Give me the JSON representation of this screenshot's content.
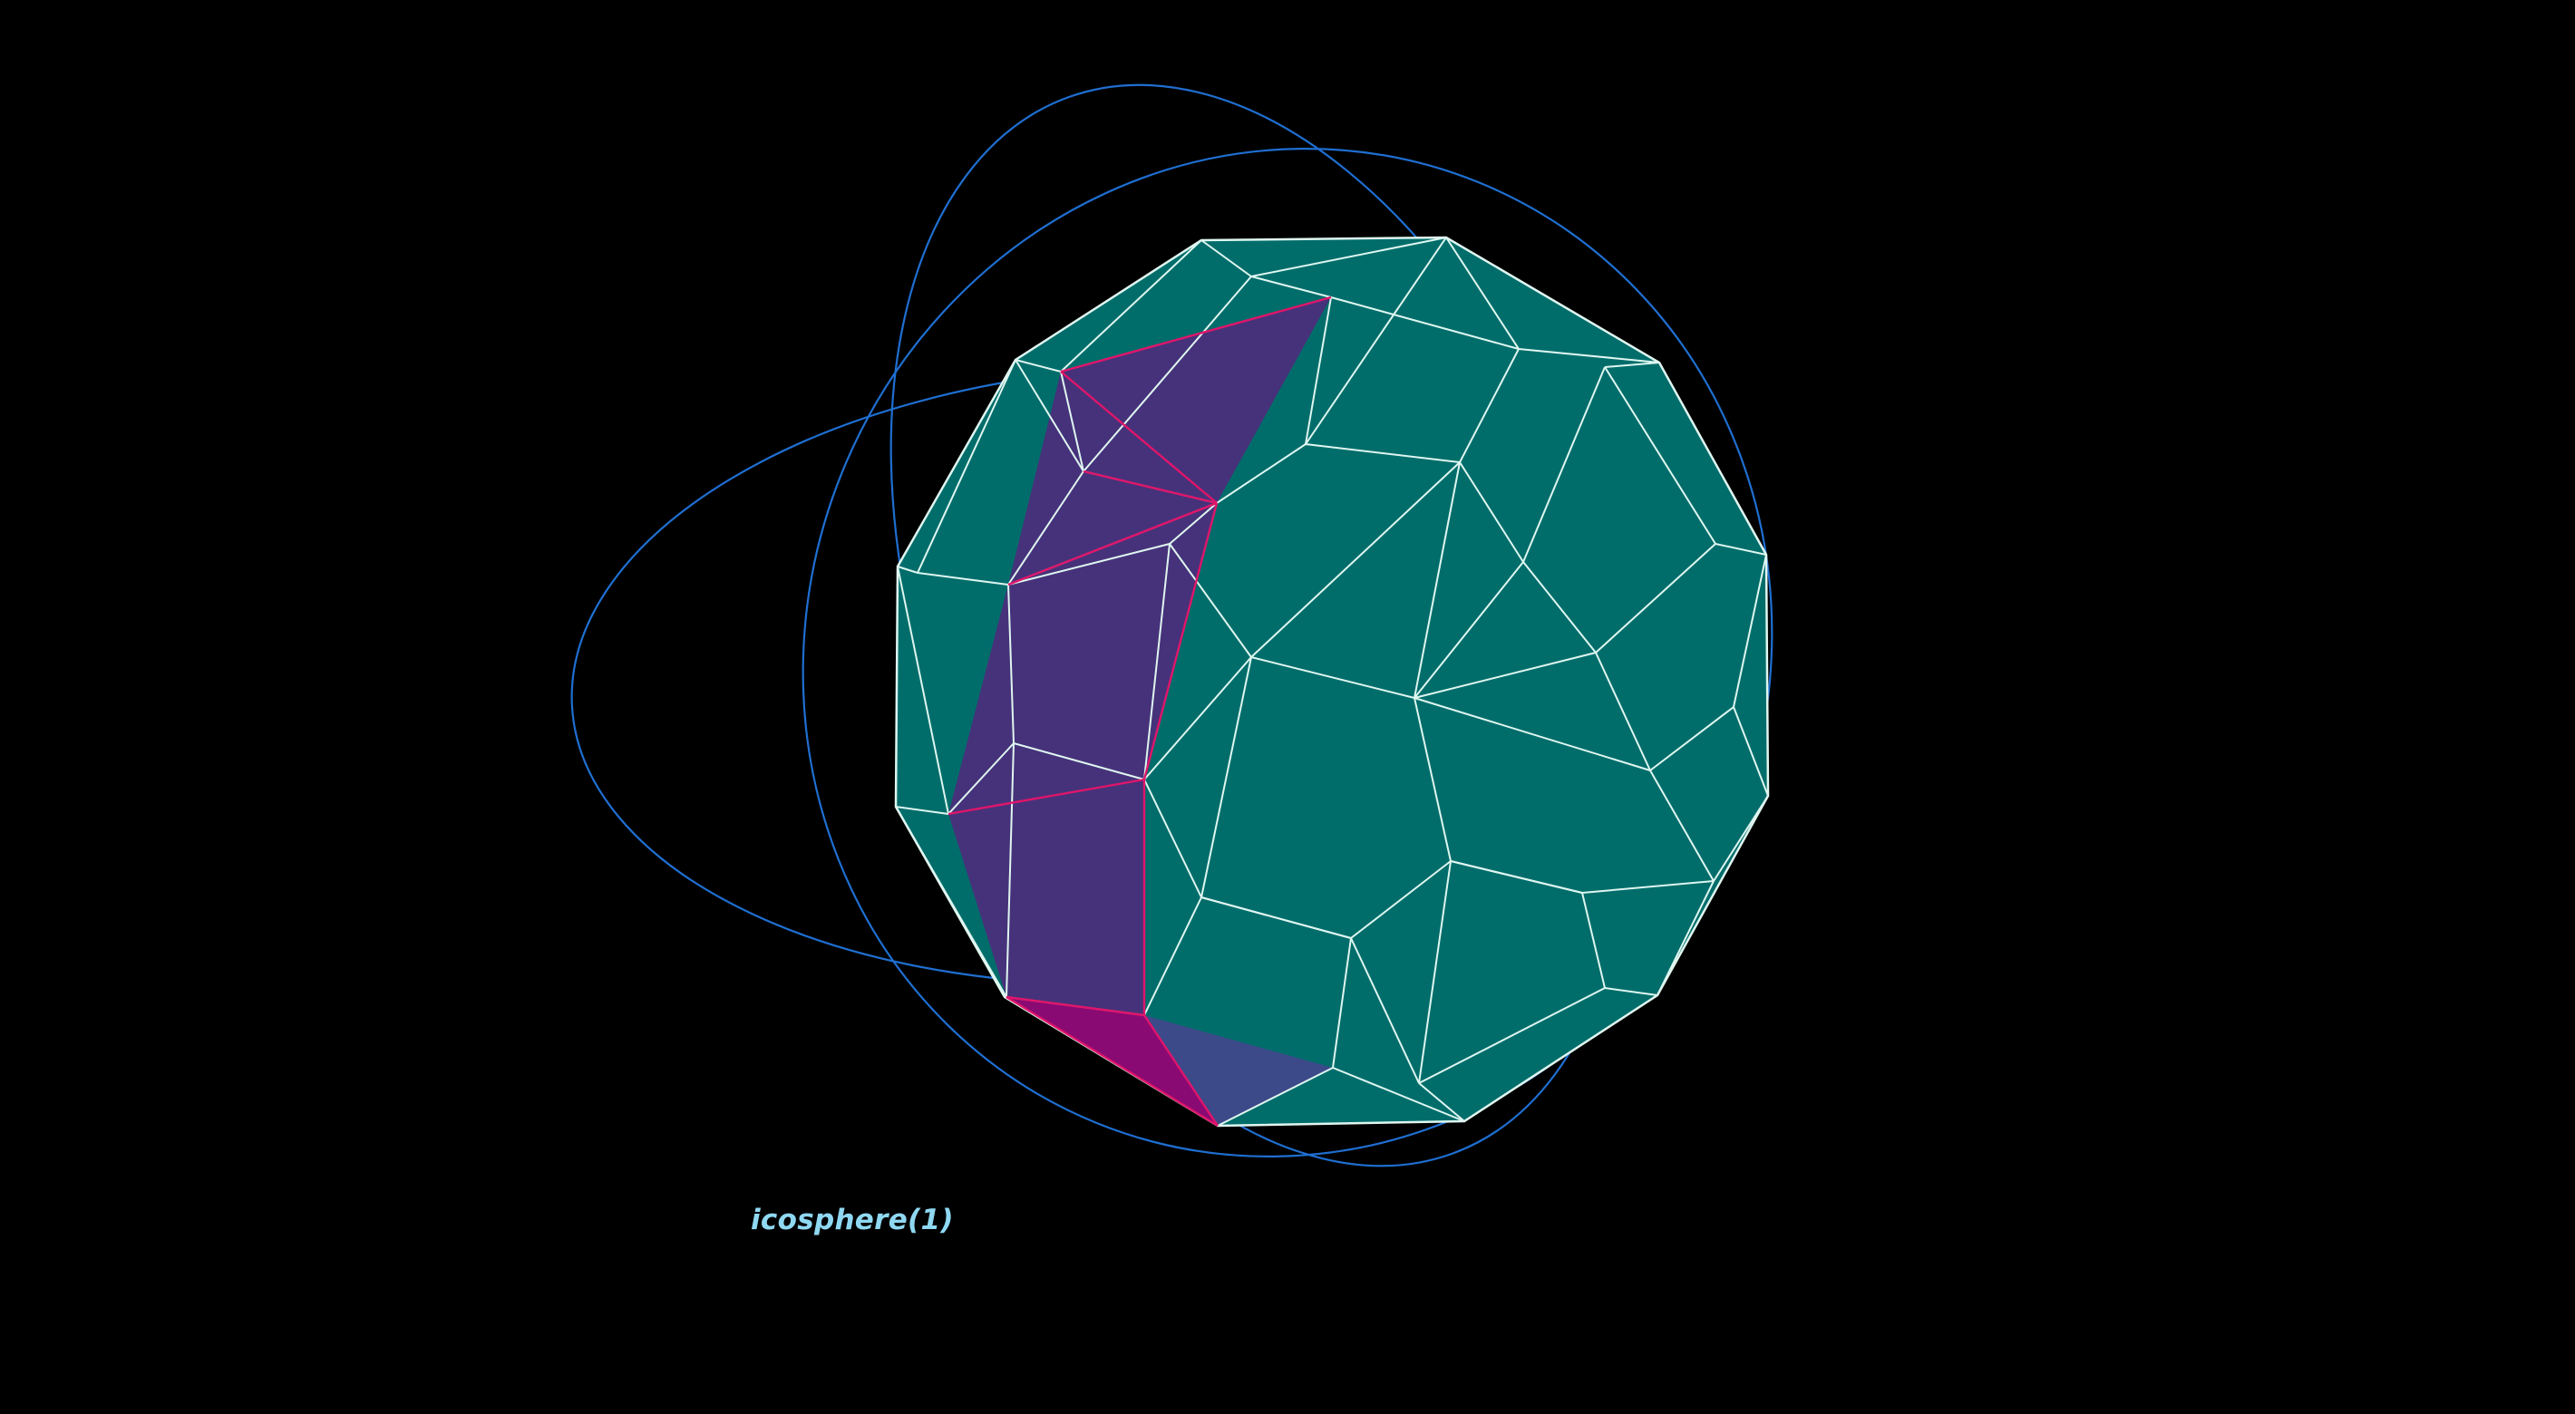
{
  "label": "icosphere(1)",
  "colors": {
    "background": "#000000",
    "face": "#006d6b",
    "edge": "#dff6f0",
    "orbit": "#1f6fd1",
    "highlight_band": "#46327a",
    "highlight_band_light": "#3c4a8a",
    "highlight_tip": "#8a0a73",
    "highlight_edge": "#e0156a",
    "label": "#8fd8f2"
  },
  "icons": {
    "mesh": "icosphere-wireframe-icon",
    "orbit": "orbit-ellipse-icon"
  }
}
